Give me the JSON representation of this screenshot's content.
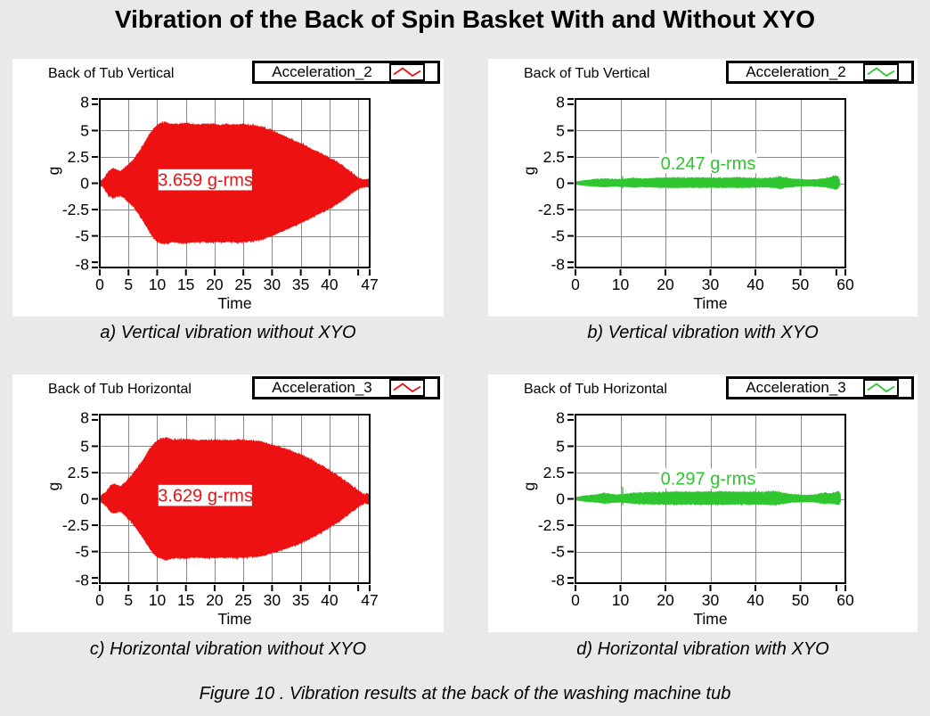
{
  "page_title": "Vibration of the Back of Spin Basket With and Without XYO",
  "figure_caption": "Figure 10 . Vibration results at the back of the washing machine tub",
  "colors": {
    "background": "#e9e9e9",
    "panel": "#ffffff",
    "grid": "#8a8a8a",
    "axis": "#000000",
    "red_series": "#ee1111",
    "green_series": "#2fc62f"
  },
  "chart_data": [
    {
      "type": "area",
      "title": "Back of Tub Vertical",
      "series_name": "Acceleration_2",
      "series_color": "#ee1111",
      "caption": "a) Vertical vibration without XYO",
      "xlabel": "Time",
      "ylabel": "g",
      "xlim": [
        0,
        47
      ],
      "ylim": [
        -8,
        8
      ],
      "x_ticks": [
        0,
        5,
        10,
        15,
        20,
        25,
        30,
        35,
        40,
        47
      ],
      "x_tick_labels": [
        "0",
        "5",
        "10",
        "15",
        "20",
        "25",
        "30",
        "35",
        "40",
        "47"
      ],
      "x_minor_ticks": [
        45
      ],
      "x_grid": [
        5,
        10,
        15,
        20,
        25,
        30,
        35,
        40,
        45
      ],
      "y_ticks": [
        8,
        5,
        2.5,
        0,
        -2.5,
        -5,
        -8
      ],
      "y_tick_labels": [
        "8",
        "5",
        "2.5",
        "0",
        "-2.5",
        "-5",
        "-8"
      ],
      "y_minor_ticks": [
        7.5,
        -7.5
      ],
      "y_grid": [
        5,
        2.5,
        0,
        -2.5,
        -5
      ],
      "rms_text": "3.659 g-rms",
      "rms_center": [
        18.4,
        0.33
      ],
      "rms_box": [
        10.2,
        -0.67,
        26.5,
        1.33
      ],
      "bottom_scale": 1.0,
      "fuzz": "red",
      "seed": 101,
      "envelope": [
        [
          0,
          0.15
        ],
        [
          0.5,
          0.25
        ],
        [
          0.9,
          0.5
        ],
        [
          1.3,
          0.85
        ],
        [
          1.7,
          1.1
        ],
        [
          2,
          1.22
        ],
        [
          2.3,
          1.3
        ],
        [
          2.6,
          1.27
        ],
        [
          3,
          1.15
        ],
        [
          3.4,
          1.06
        ],
        [
          3.8,
          1.14
        ],
        [
          4.2,
          1.32
        ],
        [
          4.6,
          1.5
        ],
        [
          5,
          1.7
        ],
        [
          5.5,
          1.95
        ],
        [
          6,
          2.25
        ],
        [
          6.5,
          2.6
        ],
        [
          7,
          3.0
        ],
        [
          7.5,
          3.45
        ],
        [
          8,
          3.9
        ],
        [
          8.5,
          4.35
        ],
        [
          9,
          4.8
        ],
        [
          9.5,
          5.15
        ],
        [
          10,
          5.45
        ],
        [
          10.5,
          5.6
        ],
        [
          11,
          5.62
        ],
        [
          11.5,
          5.65
        ],
        [
          12,
          5.6
        ],
        [
          12.5,
          5.52
        ],
        [
          13,
          5.5
        ],
        [
          14,
          5.55
        ],
        [
          15,
          5.6
        ],
        [
          16,
          5.52
        ],
        [
          17,
          5.45
        ],
        [
          18,
          5.5
        ],
        [
          19,
          5.52
        ],
        [
          20,
          5.5
        ],
        [
          21,
          5.45
        ],
        [
          22,
          5.5
        ],
        [
          23,
          5.45
        ],
        [
          24,
          5.5
        ],
        [
          25,
          5.48
        ],
        [
          26,
          5.42
        ],
        [
          27,
          5.36
        ],
        [
          28,
          5.3
        ],
        [
          28.5,
          5.22
        ],
        [
          29,
          5.1
        ],
        [
          30,
          4.9
        ],
        [
          31,
          4.65
        ],
        [
          32,
          4.4
        ],
        [
          33,
          4.15
        ],
        [
          34,
          3.9
        ],
        [
          35,
          3.65
        ],
        [
          36,
          3.4
        ],
        [
          37,
          3.12
        ],
        [
          38,
          2.85
        ],
        [
          39,
          2.6
        ],
        [
          40,
          2.3
        ],
        [
          41,
          2.0
        ],
        [
          42,
          1.65
        ],
        [
          43,
          1.25
        ],
        [
          44,
          0.8
        ],
        [
          45,
          0.45
        ],
        [
          45.5,
          0.32
        ],
        [
          46,
          0.25
        ],
        [
          46.5,
          0.3
        ],
        [
          47,
          0.22
        ]
      ],
      "spikes": []
    },
    {
      "type": "area",
      "title": "Back of Tub Vertical",
      "series_name": "Acceleration_2",
      "series_color": "#2fc62f",
      "caption": "b) Vertical vibration with XYO",
      "xlabel": "Time",
      "ylabel": "g",
      "xlim": [
        0,
        60
      ],
      "ylim": [
        -8,
        8
      ],
      "x_ticks": [
        0,
        10,
        20,
        30,
        40,
        50,
        60
      ],
      "x_tick_labels": [
        "0",
        "10",
        "20",
        "30",
        "40",
        "50",
        "60"
      ],
      "x_minor_ticks": [
        58
      ],
      "x_grid": [
        10,
        20,
        30,
        40,
        50
      ],
      "y_ticks": [
        8,
        5,
        2.5,
        0,
        -2.5,
        -5,
        -8
      ],
      "y_tick_labels": [
        "8",
        "5",
        "2.5",
        "0",
        "-2.5",
        "-5",
        "-8"
      ],
      "y_minor_ticks": [
        7.5,
        -7.5
      ],
      "y_grid": [
        5,
        2.5,
        0,
        -2.5,
        -5
      ],
      "rms_text": "0.247 g-rms",
      "rms_center": [
        29.5,
        1.9
      ],
      "rms_box": [
        18.6,
        0.95,
        40.4,
        2.85
      ],
      "bottom_scale": 0.8,
      "fuzz": "green",
      "seed": 202,
      "envelope": [
        [
          0,
          0.1
        ],
        [
          1,
          0.15
        ],
        [
          2,
          0.22
        ],
        [
          3,
          0.27
        ],
        [
          4,
          0.31
        ],
        [
          5,
          0.34
        ],
        [
          6,
          0.36
        ],
        [
          7,
          0.37
        ],
        [
          8,
          0.34
        ],
        [
          9,
          0.32
        ],
        [
          10,
          0.34
        ],
        [
          11,
          0.34
        ],
        [
          12,
          0.38
        ],
        [
          13,
          0.42
        ],
        [
          14,
          0.38
        ],
        [
          15,
          0.36
        ],
        [
          16,
          0.38
        ],
        [
          17,
          0.41
        ],
        [
          18,
          0.44
        ],
        [
          20,
          0.44
        ],
        [
          22,
          0.46
        ],
        [
          24,
          0.44
        ],
        [
          26,
          0.44
        ],
        [
          28,
          0.46
        ],
        [
          30,
          0.44
        ],
        [
          32,
          0.46
        ],
        [
          34,
          0.44
        ],
        [
          36,
          0.46
        ],
        [
          38,
          0.44
        ],
        [
          40,
          0.42
        ],
        [
          42,
          0.4
        ],
        [
          44,
          0.44
        ],
        [
          45,
          0.54
        ],
        [
          45.6,
          0.58
        ],
        [
          46.2,
          0.48
        ],
        [
          47,
          0.42
        ],
        [
          48,
          0.38
        ],
        [
          49,
          0.34
        ],
        [
          50,
          0.32
        ],
        [
          51,
          0.29
        ],
        [
          52,
          0.27
        ],
        [
          53,
          0.29
        ],
        [
          54,
          0.33
        ],
        [
          55,
          0.37
        ],
        [
          56,
          0.44
        ],
        [
          57,
          0.54
        ],
        [
          57.8,
          0.64
        ],
        [
          58.3,
          0.57
        ],
        [
          58.7,
          0.27
        ]
      ],
      "spikes": [
        [
          10.5,
          0.68,
          0.5
        ],
        [
          50.2,
          0.5,
          0.95
        ]
      ]
    },
    {
      "type": "area",
      "title": "Back of Tub Horizontal",
      "series_name": "Acceleration_3",
      "series_color": "#ee1111",
      "caption": "c) Horizontal vibration without XYO",
      "xlabel": "Time",
      "ylabel": "g",
      "xlim": [
        0,
        47
      ],
      "ylim": [
        -8,
        8
      ],
      "x_ticks": [
        0,
        5,
        10,
        15,
        20,
        25,
        30,
        35,
        40,
        47
      ],
      "x_tick_labels": [
        "0",
        "5",
        "10",
        "15",
        "20",
        "25",
        "30",
        "35",
        "40",
        "47"
      ],
      "x_minor_ticks": [
        45
      ],
      "x_grid": [
        5,
        10,
        15,
        20,
        25,
        30,
        35,
        40,
        45
      ],
      "y_ticks": [
        8,
        5,
        2.5,
        0,
        -2.5,
        -5,
        -8
      ],
      "y_tick_labels": [
        "8",
        "5",
        "2.5",
        "0",
        "-2.5",
        "-5",
        "-8"
      ],
      "y_minor_ticks": [
        7.5,
        -7.5
      ],
      "y_grid": [
        5,
        2.5,
        0,
        -2.5,
        -5
      ],
      "rms_text": "3.629 g-rms",
      "rms_center": [
        18.4,
        0.33
      ],
      "rms_box": [
        10.2,
        -0.67,
        26.5,
        1.33
      ],
      "bottom_scale": 1.0,
      "fuzz": "red",
      "seed": 303,
      "envelope": [
        [
          0,
          0.15
        ],
        [
          0.5,
          0.28
        ],
        [
          1,
          0.5
        ],
        [
          1.4,
          0.8
        ],
        [
          1.8,
          1.05
        ],
        [
          2.2,
          1.25
        ],
        [
          2.6,
          1.3
        ],
        [
          3,
          1.2
        ],
        [
          3.4,
          1.1
        ],
        [
          3.8,
          1.18
        ],
        [
          4.2,
          1.35
        ],
        [
          4.6,
          1.55
        ],
        [
          5,
          1.8
        ],
        [
          5.5,
          2.1
        ],
        [
          6,
          2.45
        ],
        [
          6.5,
          2.8
        ],
        [
          7,
          3.2
        ],
        [
          7.5,
          3.6
        ],
        [
          8,
          4.0
        ],
        [
          8.5,
          4.45
        ],
        [
          9,
          4.85
        ],
        [
          9.5,
          5.15
        ],
        [
          10,
          5.4
        ],
        [
          10.5,
          5.55
        ],
        [
          11,
          5.65
        ],
        [
          11.5,
          5.7
        ],
        [
          12,
          5.65
        ],
        [
          12.5,
          5.55
        ],
        [
          13,
          5.5
        ],
        [
          14,
          5.52
        ],
        [
          15,
          5.55
        ],
        [
          16,
          5.5
        ],
        [
          17,
          5.46
        ],
        [
          18,
          5.5
        ],
        [
          19,
          5.5
        ],
        [
          20,
          5.52
        ],
        [
          21,
          5.46
        ],
        [
          22,
          5.5
        ],
        [
          23,
          5.46
        ],
        [
          24,
          5.5
        ],
        [
          25,
          5.46
        ],
        [
          26,
          5.44
        ],
        [
          27,
          5.4
        ],
        [
          28,
          5.35
        ],
        [
          29,
          5.2
        ],
        [
          30,
          5.02
        ],
        [
          31,
          4.85
        ],
        [
          32,
          4.68
        ],
        [
          33,
          4.5
        ],
        [
          34,
          4.3
        ],
        [
          35,
          4.1
        ],
        [
          36,
          3.85
        ],
        [
          37,
          3.55
        ],
        [
          38,
          3.25
        ],
        [
          39,
          2.95
        ],
        [
          40,
          2.62
        ],
        [
          41,
          2.28
        ],
        [
          42,
          1.9
        ],
        [
          43,
          1.5
        ],
        [
          44,
          1.1
        ],
        [
          45,
          0.7
        ],
        [
          45.6,
          0.45
        ],
        [
          46.2,
          0.3
        ],
        [
          46.7,
          0.4
        ],
        [
          47,
          0.25
        ]
      ],
      "spikes": []
    },
    {
      "type": "area",
      "title": "Back of Tub Horizontal",
      "series_name": "Acceleration_3",
      "series_color": "#2fc62f",
      "caption": "d) Horizontal vibration with XYO",
      "xlabel": "Time",
      "ylabel": "g",
      "xlim": [
        0,
        60
      ],
      "ylim": [
        -8,
        8
      ],
      "x_ticks": [
        0,
        10,
        20,
        30,
        40,
        50,
        60
      ],
      "x_tick_labels": [
        "0",
        "10",
        "20",
        "30",
        "40",
        "50",
        "60"
      ],
      "x_minor_ticks": [
        58
      ],
      "x_grid": [
        10,
        20,
        30,
        40,
        50
      ],
      "y_ticks": [
        8,
        5,
        2.5,
        0,
        -2.5,
        -5,
        -8
      ],
      "y_tick_labels": [
        "8",
        "5",
        "2.5",
        "0",
        "-2.5",
        "-5",
        "-8"
      ],
      "y_minor_ticks": [
        7.5,
        -7.5
      ],
      "y_grid": [
        5,
        2.5,
        0,
        -2.5,
        -5
      ],
      "rms_text": "0.297 g-rms",
      "rms_center": [
        29.5,
        1.95
      ],
      "rms_box": [
        18.6,
        1.0,
        40.4,
        2.9
      ],
      "bottom_scale": 0.8,
      "fuzz": "green",
      "seed": 404,
      "envelope": [
        [
          0,
          0.1
        ],
        [
          1,
          0.17
        ],
        [
          2,
          0.24
        ],
        [
          3,
          0.29
        ],
        [
          4,
          0.32
        ],
        [
          5,
          0.35
        ],
        [
          6,
          0.45
        ],
        [
          6.5,
          0.48
        ],
        [
          7,
          0.43
        ],
        [
          8,
          0.39
        ],
        [
          9,
          0.35
        ],
        [
          10,
          0.35
        ],
        [
          11,
          0.39
        ],
        [
          12,
          0.43
        ],
        [
          13,
          0.47
        ],
        [
          14,
          0.49
        ],
        [
          15,
          0.53
        ],
        [
          16,
          0.53
        ],
        [
          18,
          0.55
        ],
        [
          20,
          0.58
        ],
        [
          22,
          0.58
        ],
        [
          24,
          0.58
        ],
        [
          26,
          0.58
        ],
        [
          28,
          0.59
        ],
        [
          30,
          0.58
        ],
        [
          32,
          0.61
        ],
        [
          34,
          0.58
        ],
        [
          36,
          0.58
        ],
        [
          38,
          0.58
        ],
        [
          40,
          0.58
        ],
        [
          42,
          0.59
        ],
        [
          44,
          0.63
        ],
        [
          45,
          0.58
        ],
        [
          46,
          0.51
        ],
        [
          47,
          0.43
        ],
        [
          48,
          0.37
        ],
        [
          49,
          0.34
        ],
        [
          50,
          0.32
        ],
        [
          51,
          0.3
        ],
        [
          52,
          0.3
        ],
        [
          53,
          0.32
        ],
        [
          54,
          0.4
        ],
        [
          55,
          0.48
        ],
        [
          55.5,
          0.53
        ],
        [
          56,
          0.43
        ],
        [
          57,
          0.45
        ],
        [
          58,
          0.57
        ],
        [
          58.5,
          0.63
        ],
        [
          58.9,
          0.3
        ]
      ],
      "spikes": [
        [
          10.5,
          1.15,
          0.6
        ],
        [
          50.2,
          0.55,
          0.65
        ],
        [
          55.2,
          0.55,
          0.35
        ]
      ]
    }
  ]
}
